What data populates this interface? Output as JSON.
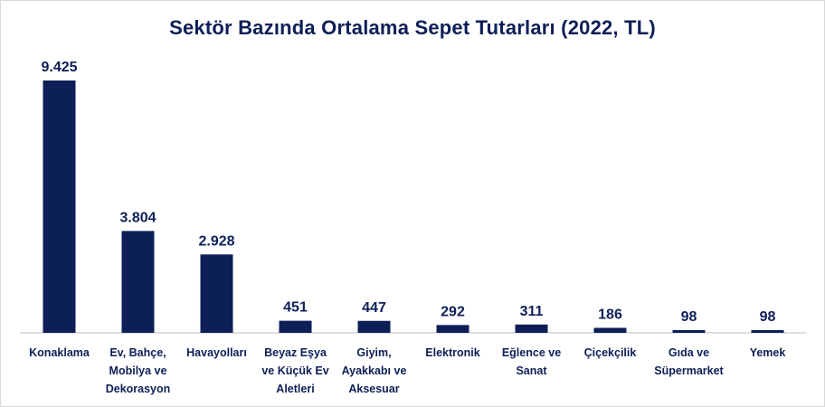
{
  "chart_data": {
    "type": "bar",
    "title": "Sektör Bazında Ortalama Sepet Tutarları (2022, TL)",
    "categories": [
      [
        "Konaklama"
      ],
      [
        "Ev, Bahçe,",
        "Mobilya ve",
        "Dekorasyon"
      ],
      [
        "Havayolları"
      ],
      [
        "Beyaz Eşya",
        "ve Küçük Ev",
        "Aletleri"
      ],
      [
        "Giyim,",
        "Ayakkabı ve",
        "Aksesuar"
      ],
      [
        "Elektronik"
      ],
      [
        "Eğlence ve",
        "Sanat"
      ],
      [
        "Çiçekçilik"
      ],
      [
        "Gıda ve",
        "Süpermarket"
      ],
      [
        "Yemek"
      ]
    ],
    "values": [
      9425,
      3804,
      2928,
      451,
      447,
      292,
      311,
      186,
      98,
      98
    ],
    "value_labels": [
      "9.425",
      "3.804",
      "2.928",
      "451",
      "447",
      "292",
      "311",
      "186",
      "98",
      "98"
    ],
    "colors": {
      "bar": "#0d1f57",
      "text": "#0d1f57",
      "axis": "#bfbfbf"
    },
    "ylim": [
      0,
      9425
    ],
    "grid": false,
    "legend": "none"
  }
}
